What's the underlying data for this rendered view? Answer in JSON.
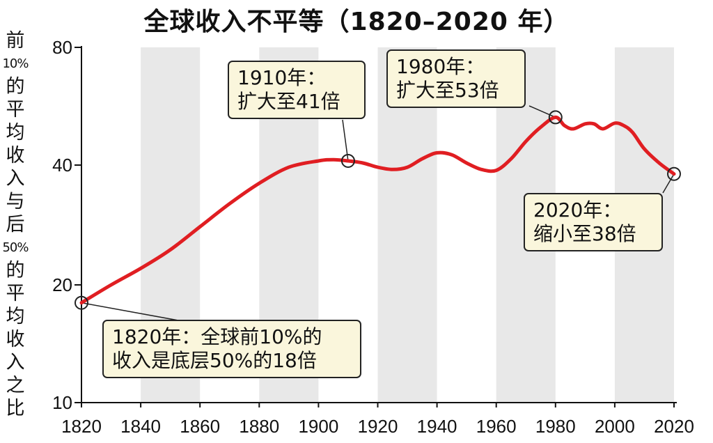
{
  "chart_data": {
    "type": "line",
    "title": "全球收入不平等（1820–2020 年）",
    "ylabel_parts": [
      "前",
      "10%",
      "的",
      "平",
      "均",
      "收",
      "入",
      "与",
      "后",
      "50%",
      "的",
      "平",
      "均",
      "收",
      "入",
      "之",
      "比"
    ],
    "xlabel": "",
    "x_ticks": [
      "1820",
      "1840",
      "1860",
      "1880",
      "1900",
      "1920",
      "1940",
      "1960",
      "1980",
      "2000",
      "2020"
    ],
    "y_ticks": [
      "80",
      "40",
      "20",
      "10"
    ],
    "yscale": "log",
    "xlim": [
      1820,
      2020
    ],
    "ylim": [
      10,
      80
    ],
    "series": [
      {
        "name": "前10%/后50%收入比",
        "color": "#e01e22",
        "x": [
          1820,
          1830,
          1840,
          1850,
          1860,
          1870,
          1880,
          1890,
          1900,
          1905,
          1910,
          1915,
          1920,
          1925,
          1930,
          1935,
          1940,
          1945,
          1950,
          1955,
          1960,
          1965,
          1970,
          1975,
          1980,
          1983,
          1986,
          1990,
          1993,
          1996,
          2000,
          2003,
          2006,
          2010,
          2015,
          2020
        ],
        "values": [
          18,
          20,
          22,
          24.5,
          28,
          32,
          36,
          39.5,
          41,
          41.3,
          41,
          40.5,
          39.5,
          39,
          39.5,
          41.5,
          43,
          42.5,
          40.5,
          39,
          38.8,
          41.5,
          46,
          50,
          53,
          50.5,
          49.5,
          51,
          51,
          49.5,
          51.2,
          50.5,
          48.5,
          44,
          40.5,
          38
        ]
      }
    ],
    "highlight_points": [
      {
        "x": 1820,
        "y": 18
      },
      {
        "x": 1910,
        "y": 41
      },
      {
        "x": 1980,
        "y": 53
      },
      {
        "x": 2020,
        "y": 38
      }
    ],
    "annotations": [
      {
        "id": "a1820",
        "lines": [
          "1820年：全球前10%的",
          "收入是底层50%的18倍"
        ]
      },
      {
        "id": "a1910",
        "lines": [
          "1910年：",
          "扩大至41倍"
        ]
      },
      {
        "id": "a1980",
        "lines": [
          "1980年：",
          "扩大至53倍"
        ]
      },
      {
        "id": "a2020",
        "lines": [
          "2020年：",
          "缩小至38倍"
        ]
      }
    ],
    "grid": "alternating vertical bands"
  }
}
